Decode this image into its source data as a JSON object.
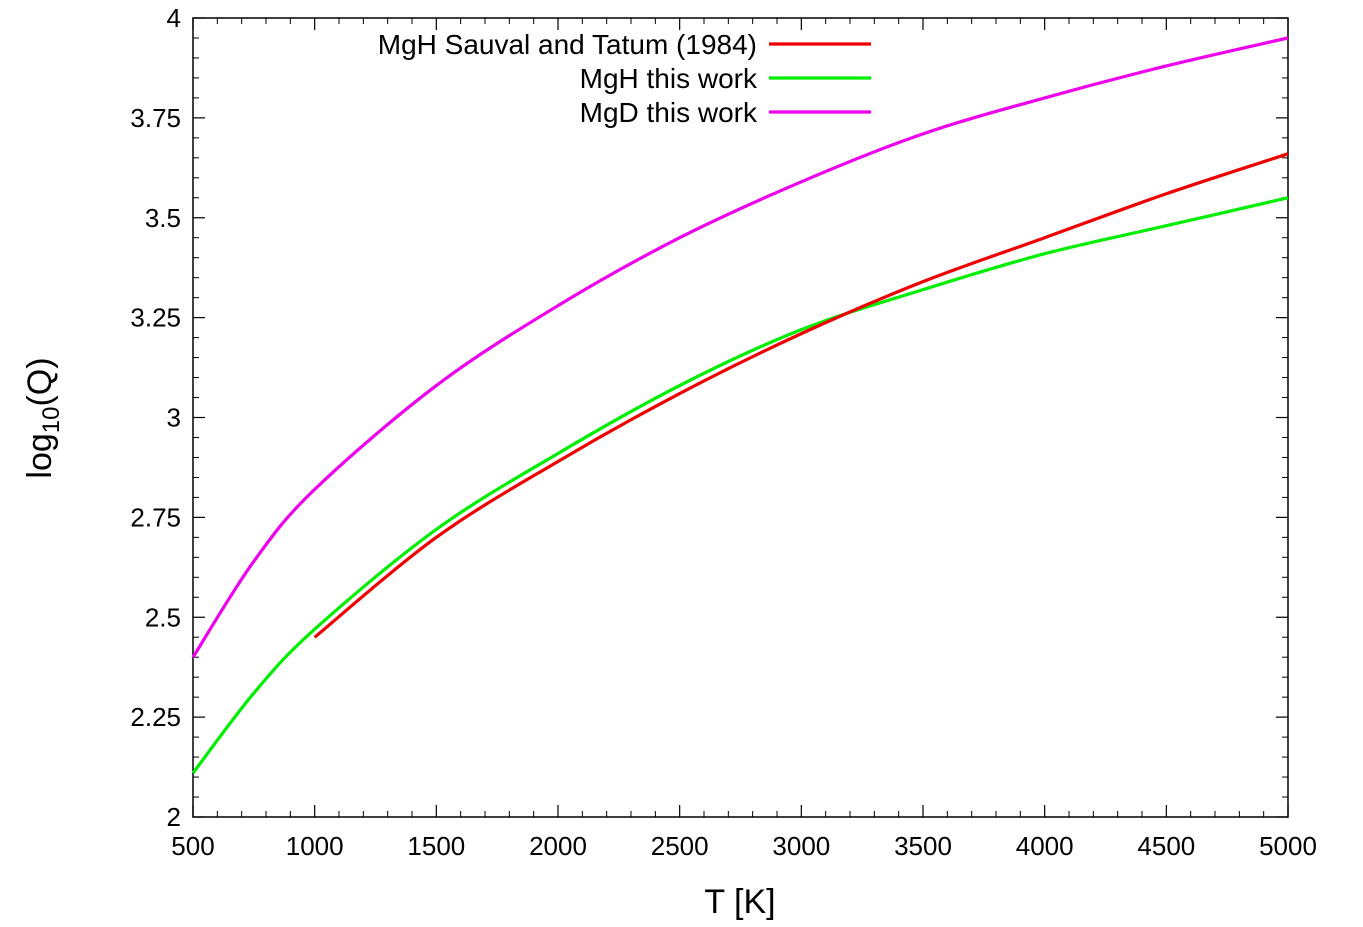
{
  "chart_data": {
    "type": "line",
    "xlabel": "T [K]",
    "ylabel": {
      "main": "log",
      "sub": "10",
      "suffix": "(Q)"
    },
    "xlim": [
      500,
      5000
    ],
    "ylim": [
      2,
      4
    ],
    "x_ticks": [
      "500",
      "1000",
      "1500",
      "2000",
      "2500",
      "3000",
      "3500",
      "4000",
      "4500",
      "5000"
    ],
    "y_ticks": [
      "2",
      "2.25",
      "2.5",
      "2.75",
      "3",
      "3.25",
      "3.5",
      "3.75",
      "4"
    ],
    "x_tick_values": [
      500,
      1000,
      1500,
      2000,
      2500,
      3000,
      3500,
      4000,
      4500,
      5000
    ],
    "y_tick_values": [
      2,
      2.25,
      2.5,
      2.75,
      3,
      3.25,
      3.5,
      3.75,
      4
    ],
    "grid": false,
    "legend_position": "top-right",
    "series": [
      {
        "name": "MgH Sauval and Tatum (1984)",
        "color": "#ee0000",
        "x": [
          1000,
          1500,
          2000,
          2500,
          3000,
          3500,
          4000,
          4500,
          5000
        ],
        "y": [
          2.45,
          2.7,
          2.89,
          3.06,
          3.21,
          3.34,
          3.45,
          3.56,
          3.66
        ]
      },
      {
        "name": "MgH this work",
        "color": "#00ee00",
        "x": [
          500,
          750,
          1000,
          1500,
          2000,
          2500,
          3000,
          3500,
          4000,
          4500,
          5000
        ],
        "y": [
          2.11,
          2.31,
          2.47,
          2.72,
          2.91,
          3.08,
          3.22,
          3.32,
          3.41,
          3.48,
          3.55
        ]
      },
      {
        "name": "MgD this work",
        "color": "#ee00ee",
        "x": [
          500,
          750,
          1000,
          1500,
          2000,
          2500,
          3000,
          3500,
          4000,
          4500,
          5000
        ],
        "y": [
          2.4,
          2.64,
          2.82,
          3.08,
          3.28,
          3.45,
          3.59,
          3.71,
          3.8,
          3.88,
          3.95
        ]
      }
    ]
  }
}
